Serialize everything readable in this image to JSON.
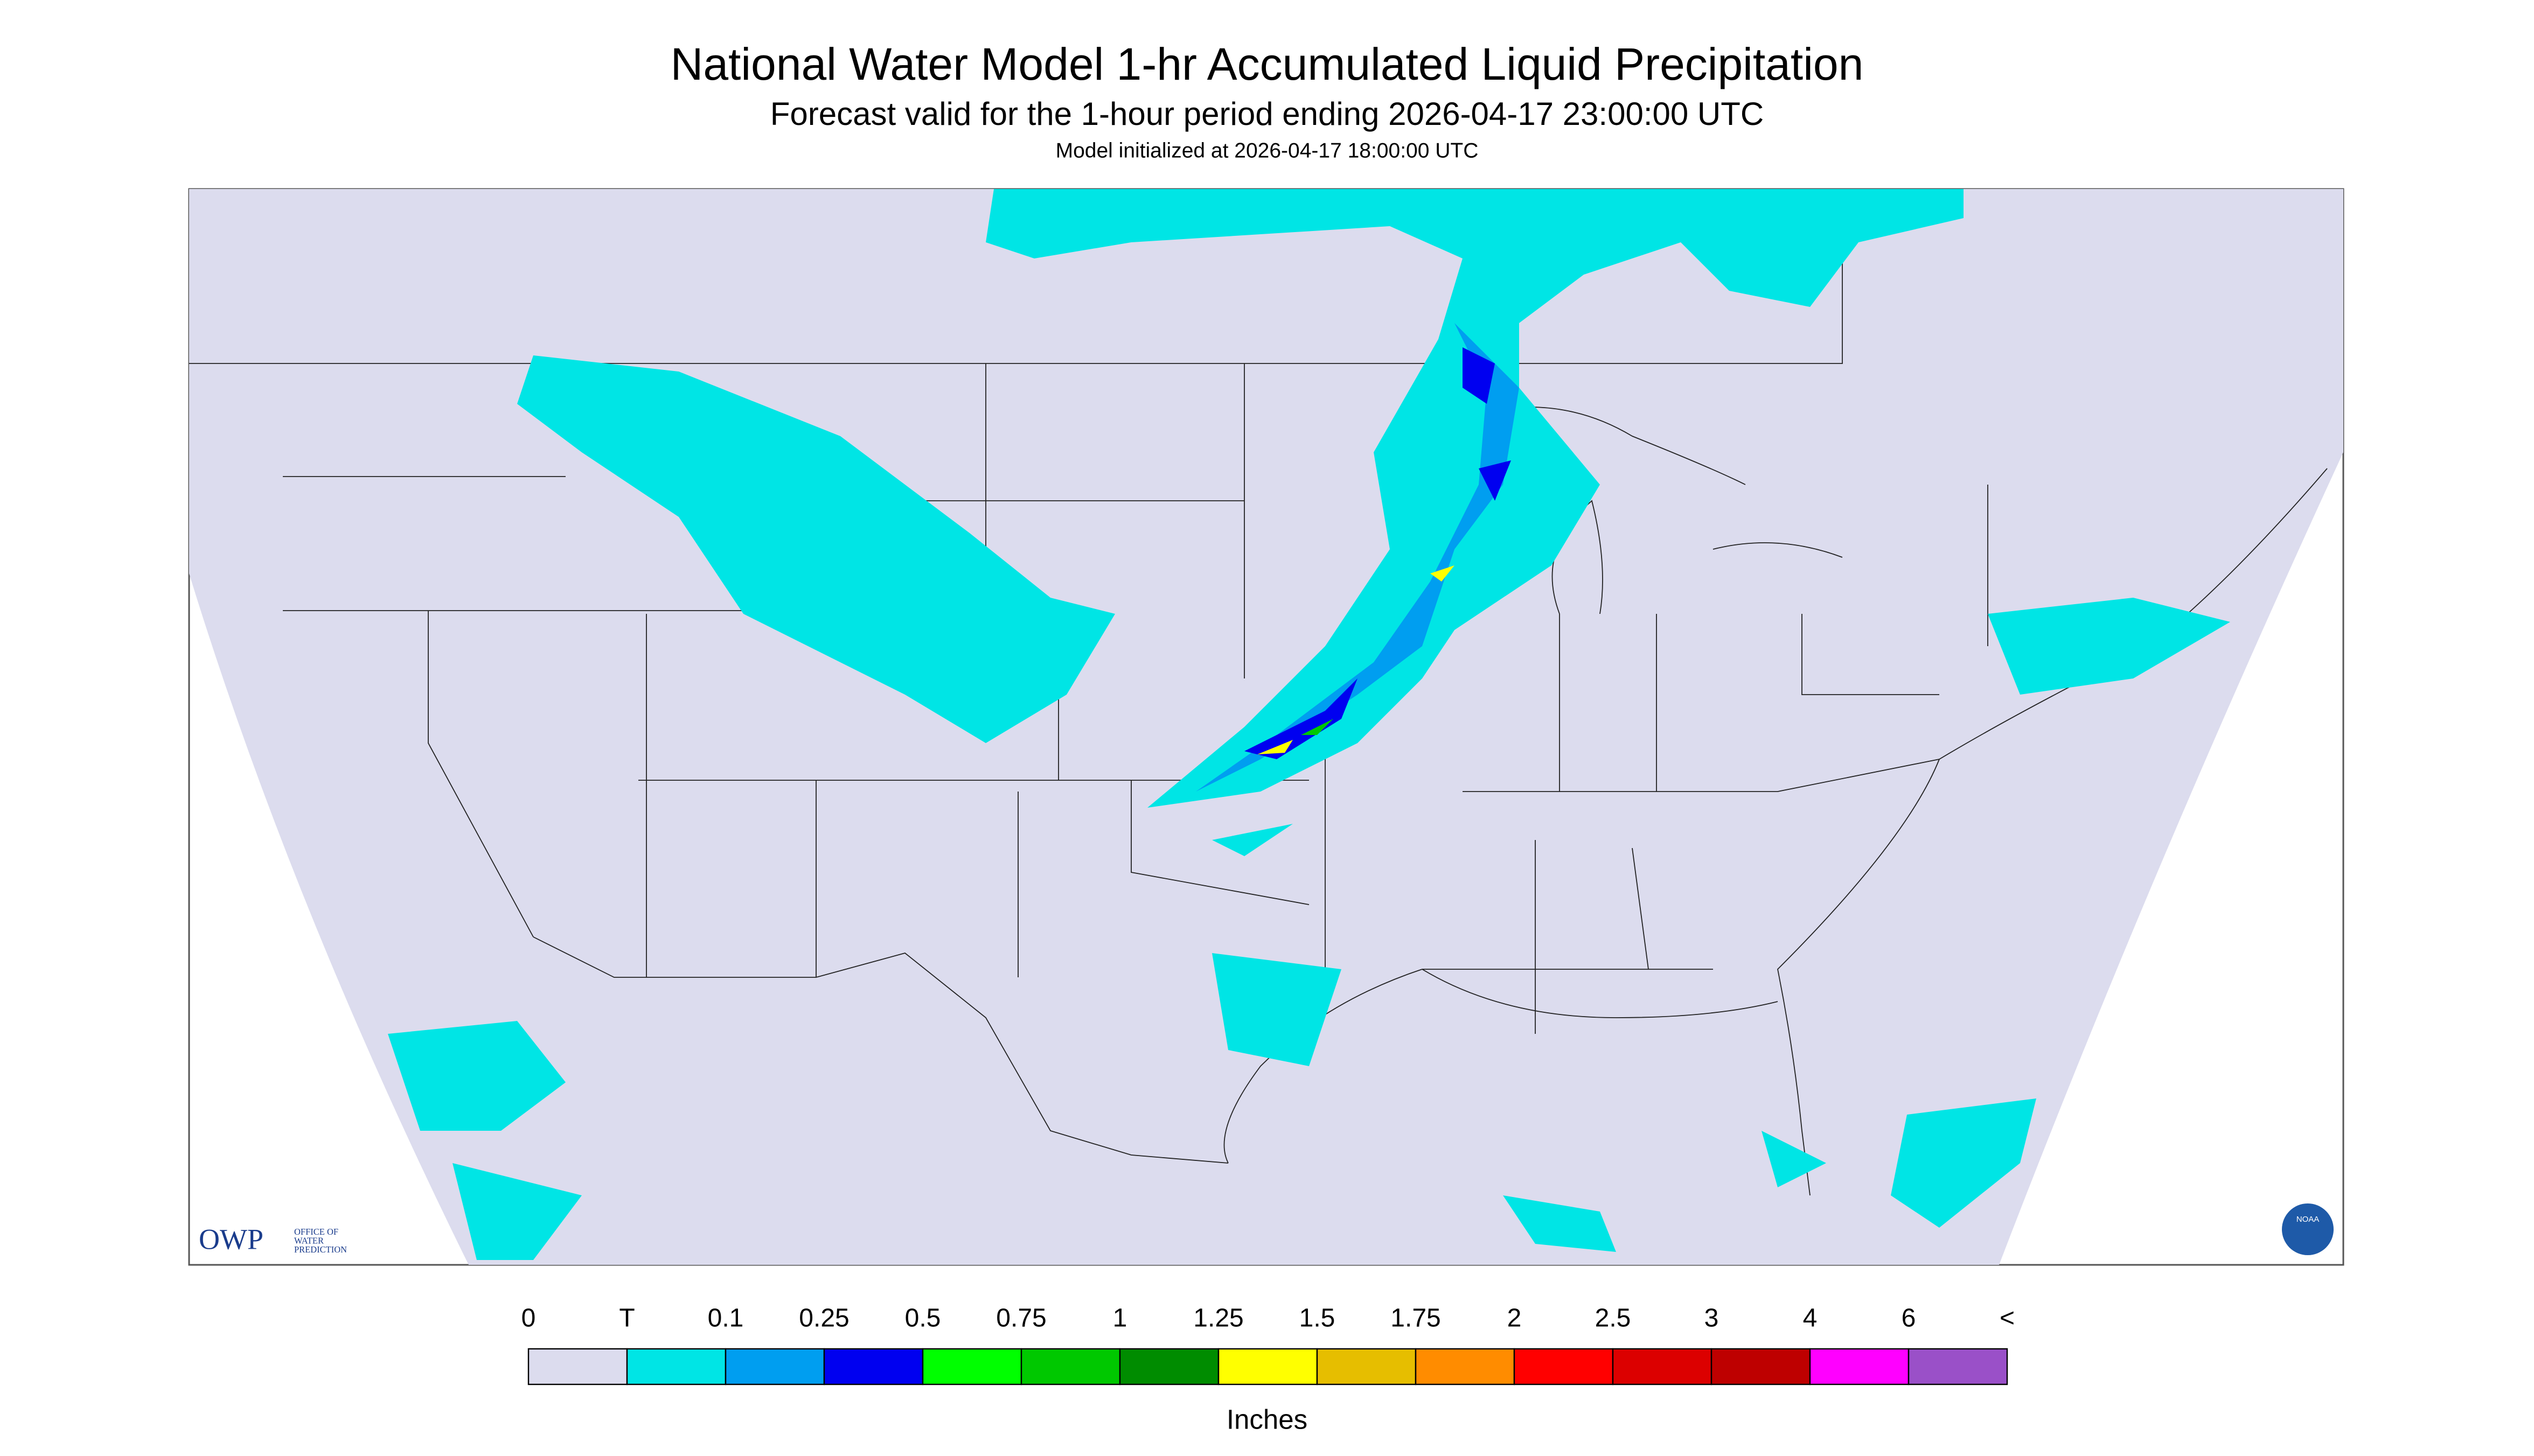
{
  "header": {
    "title": "National Water Model 1-hr Accumulated Liquid Precipitation",
    "subtitle": "Forecast valid for the 1-hour period ending 2026-04-17 23:00:00 UTC",
    "note": "Model initialized at 2026-04-17 18:00:00 UTC"
  },
  "logos": {
    "owp": "OWP",
    "owp_name": [
      "OFFICE OF",
      "WATER",
      "PREDICTION"
    ],
    "noaa": "NOAA"
  },
  "legend": {
    "labels": [
      "0",
      "T",
      "0.1",
      "0.25",
      "0.5",
      "0.75",
      "1",
      "1.25",
      "1.5",
      "1.75",
      "2",
      "2.5",
      "3",
      "4",
      "6",
      "<"
    ],
    "colors": [
      "#dcdcee",
      "#00e5e5",
      "#009ef0",
      "#0000f0",
      "#00ff00",
      "#00c800",
      "#008c00",
      "#ffff00",
      "#e6be00",
      "#ff8c00",
      "#ff0000",
      "#dc0000",
      "#be0000",
      "#ff00ff",
      "#9a50c8"
    ],
    "units": "Inches"
  }
}
